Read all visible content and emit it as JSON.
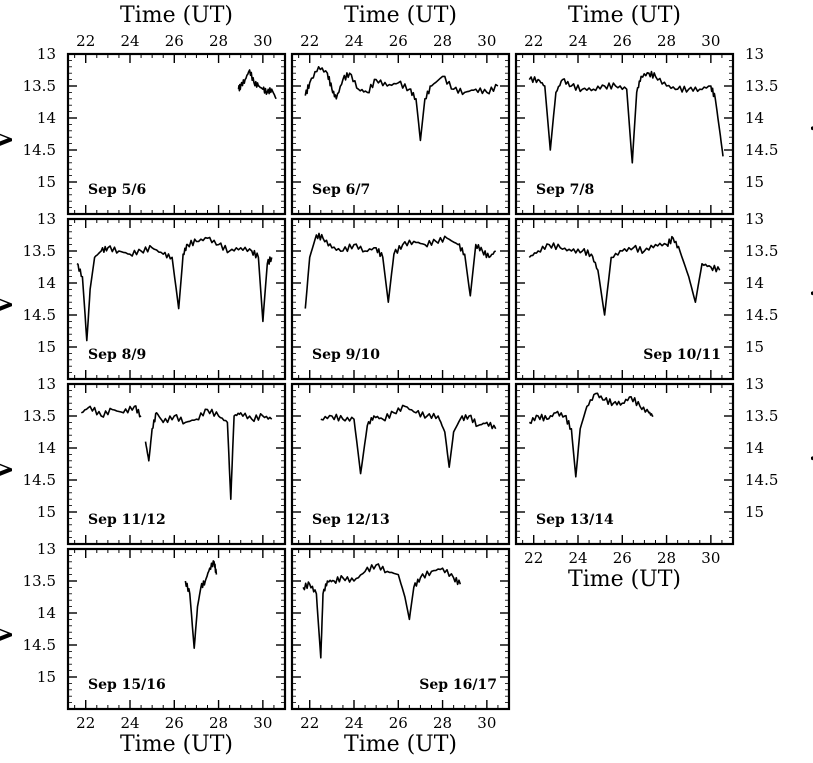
{
  "figure": {
    "xlabel": "Time (UT)",
    "ylabel": "V"
  },
  "chart_data": [
    {
      "type": "line",
      "label": "Sep 5/6",
      "xlabel": "Time (UT)",
      "ylabel": "V",
      "xlim": [
        21.2,
        31
      ],
      "ylim": [
        15.5,
        13
      ],
      "invert_y": true,
      "xticks": [
        22,
        24,
        26,
        28,
        30
      ],
      "yticks": [
        13,
        13.5,
        14,
        14.5,
        15
      ],
      "series": [
        {
          "x": [
            28.9,
            29.0,
            29.2,
            29.4,
            29.6,
            29.8,
            30.0,
            30.2,
            30.4,
            30.6
          ],
          "y": [
            13.55,
            13.5,
            13.4,
            13.25,
            13.45,
            13.5,
            13.55,
            13.6,
            13.55,
            13.7
          ]
        }
      ]
    },
    {
      "type": "line",
      "label": "Sep 6/7",
      "xlabel": "Time (UT)",
      "ylabel": "V",
      "xlim": [
        21.2,
        31
      ],
      "ylim": [
        15.5,
        13
      ],
      "invert_y": true,
      "xticks": [
        22,
        24,
        26,
        28,
        30
      ],
      "yticks": [
        13,
        13.5,
        14,
        14.5,
        15
      ],
      "series": [
        {
          "x": [
            21.8,
            22.0,
            22.4,
            22.8,
            23.0,
            23.2,
            23.5,
            23.8,
            24.2,
            24.6,
            25.0,
            25.5,
            26.0,
            26.5,
            26.8,
            27.0,
            27.2,
            27.5,
            28.0,
            28.5,
            29.0,
            29.5,
            30.0,
            30.5
          ],
          "y": [
            13.65,
            13.45,
            13.2,
            13.3,
            13.55,
            13.7,
            13.4,
            13.3,
            13.55,
            13.6,
            13.4,
            13.5,
            13.45,
            13.55,
            13.7,
            14.35,
            13.7,
            13.5,
            13.35,
            13.55,
            13.6,
            13.55,
            13.6,
            13.5
          ]
        }
      ]
    },
    {
      "type": "line",
      "label": "Sep 7/8",
      "xlabel": "Time (UT)",
      "ylabel": "V",
      "xlim": [
        21.2,
        31
      ],
      "ylim": [
        15.5,
        13
      ],
      "invert_y": true,
      "xticks": [
        22,
        24,
        26,
        28,
        30
      ],
      "yticks": [
        13,
        13.5,
        14,
        14.5,
        15
      ],
      "series": [
        {
          "x": [
            21.8,
            22.2,
            22.5,
            22.75,
            23.0,
            23.3,
            23.7,
            24.2,
            24.7,
            25.2,
            25.7,
            26.2,
            26.45,
            26.65,
            26.85,
            27.2,
            27.5,
            28.0,
            28.5,
            29.0,
            29.5,
            30.0,
            30.2,
            30.4,
            30.55
          ],
          "y": [
            13.4,
            13.4,
            13.5,
            14.5,
            13.6,
            13.4,
            13.5,
            13.55,
            13.55,
            13.5,
            13.5,
            13.55,
            14.7,
            13.6,
            13.35,
            13.3,
            13.35,
            13.5,
            13.55,
            13.55,
            13.55,
            13.5,
            13.7,
            14.2,
            14.6
          ]
        }
      ]
    },
    {
      "type": "line",
      "label": "Sep 8/9",
      "xlabel": "Time (UT)",
      "ylabel": "V",
      "xlim": [
        21.2,
        31
      ],
      "ylim": [
        15.5,
        13
      ],
      "invert_y": true,
      "xticks": [
        22,
        24,
        26,
        28,
        30
      ],
      "yticks": [
        13,
        13.5,
        14,
        14.5,
        15
      ],
      "series": [
        {
          "x": [
            21.6,
            21.85,
            22.05,
            22.2,
            22.4,
            22.7,
            23.0,
            23.5,
            24.0,
            24.5,
            25.0,
            25.5,
            25.9,
            26.2,
            26.4,
            26.6,
            27.0,
            27.5,
            28.0,
            28.5,
            29.0,
            29.5,
            29.8,
            30.0,
            30.2,
            30.4
          ],
          "y": [
            13.7,
            13.9,
            14.9,
            14.1,
            13.6,
            13.5,
            13.45,
            13.5,
            13.55,
            13.5,
            13.45,
            13.55,
            13.6,
            14.4,
            13.55,
            13.4,
            13.35,
            13.3,
            13.4,
            13.5,
            13.45,
            13.5,
            13.6,
            14.6,
            13.7,
            13.6
          ]
        }
      ]
    },
    {
      "type": "line",
      "label": "Sep 9/10",
      "xlabel": "Time (UT)",
      "ylabel": "V",
      "xlim": [
        21.2,
        31
      ],
      "ylim": [
        15.5,
        13
      ],
      "invert_y": true,
      "xticks": [
        22,
        24,
        26,
        28,
        30
      ],
      "yticks": [
        13,
        13.5,
        14,
        14.5,
        15
      ],
      "series": [
        {
          "x": [
            21.8,
            22.0,
            22.3,
            22.6,
            23.0,
            23.5,
            24.0,
            24.5,
            25.0,
            25.3,
            25.55,
            25.8,
            26.2,
            26.7,
            27.2,
            27.7,
            28.2,
            28.7,
            29.0,
            29.25,
            29.5,
            29.8,
            30.1,
            30.4
          ],
          "y": [
            14.4,
            13.6,
            13.25,
            13.3,
            13.45,
            13.5,
            13.4,
            13.5,
            13.45,
            13.6,
            14.3,
            13.55,
            13.4,
            13.35,
            13.4,
            13.35,
            13.3,
            13.4,
            13.55,
            14.2,
            13.4,
            13.5,
            13.6,
            13.5
          ]
        }
      ]
    },
    {
      "type": "line",
      "label": "Sep 10/11",
      "xlabel": "Time (UT)",
      "ylabel": "V",
      "xlim": [
        21.2,
        31
      ],
      "ylim": [
        15.5,
        13
      ],
      "invert_y": true,
      "xticks": [
        22,
        24,
        26,
        28,
        30
      ],
      "yticks": [
        13,
        13.5,
        14,
        14.5,
        15
      ],
      "series": [
        {
          "x": [
            21.8,
            22.2,
            22.7,
            23.2,
            23.7,
            24.2,
            24.6,
            24.9,
            25.2,
            25.5,
            26.0,
            26.5,
            27.0,
            27.5,
            28.0,
            28.3,
            28.6,
            29.0,
            29.3,
            29.6,
            30.0,
            30.4
          ],
          "y": [
            13.6,
            13.5,
            13.4,
            13.45,
            13.5,
            13.5,
            13.55,
            13.8,
            14.5,
            13.6,
            13.5,
            13.45,
            13.5,
            13.4,
            13.4,
            13.3,
            13.5,
            13.9,
            14.3,
            13.7,
            13.75,
            13.8
          ]
        }
      ]
    },
    {
      "type": "line",
      "label": "Sep 11/12",
      "xlabel": "Time (UT)",
      "ylabel": "V",
      "xlim": [
        21.2,
        31
      ],
      "ylim": [
        15.5,
        13
      ],
      "invert_y": true,
      "xticks": [
        22,
        24,
        26,
        28,
        30
      ],
      "yticks": [
        13,
        13.5,
        14,
        14.5,
        15
      ],
      "series": [
        {
          "x": [
            21.8,
            22.2,
            22.7,
            23.2,
            23.7,
            24.2,
            24.5
          ],
          "y": [
            13.45,
            13.35,
            13.5,
            13.4,
            13.45,
            13.35,
            13.5
          ]
        },
        {
          "x": [
            24.7,
            24.85,
            25.0,
            25.2,
            25.5,
            26.0,
            26.5,
            27.0,
            27.5,
            28.0,
            28.4,
            28.55,
            28.7,
            29.0,
            29.5,
            30.0,
            30.4
          ],
          "y": [
            13.9,
            14.2,
            13.7,
            13.45,
            13.6,
            13.5,
            13.6,
            13.55,
            13.4,
            13.5,
            13.6,
            14.8,
            13.5,
            13.45,
            13.55,
            13.5,
            13.55
          ]
        }
      ]
    },
    {
      "type": "line",
      "label": "Sep 12/13",
      "xlabel": "Time (UT)",
      "ylabel": "V",
      "xlim": [
        21.2,
        31
      ],
      "ylim": [
        15.5,
        13
      ],
      "invert_y": true,
      "xticks": [
        22,
        24,
        26,
        28,
        30
      ],
      "yticks": [
        13,
        13.5,
        14,
        14.5,
        15
      ],
      "series": [
        {
          "x": [
            22.5,
            23.0,
            23.5,
            24.0,
            24.3,
            24.6,
            24.9,
            25.3,
            25.8,
            26.3,
            26.8,
            27.3,
            27.8,
            28.1,
            28.3,
            28.5,
            28.8,
            29.2,
            29.6,
            30.0,
            30.4
          ],
          "y": [
            13.55,
            13.5,
            13.55,
            13.55,
            14.4,
            13.65,
            13.5,
            13.55,
            13.45,
            13.35,
            13.45,
            13.5,
            13.5,
            13.75,
            14.3,
            13.75,
            13.55,
            13.5,
            13.65,
            13.6,
            13.7
          ]
        }
      ]
    },
    {
      "type": "line",
      "label": "Sep 13/14",
      "xlabel": "Time (UT)",
      "ylabel": "V",
      "xlim": [
        21.2,
        31
      ],
      "ylim": [
        15.5,
        13
      ],
      "invert_y": true,
      "xticks": [
        22,
        24,
        26,
        28,
        30
      ],
      "yticks": [
        13,
        13.5,
        14,
        14.5,
        15
      ],
      "series": [
        {
          "x": [
            21.8,
            22.2,
            22.6,
            23.0,
            23.4,
            23.7,
            23.9,
            24.1,
            24.4,
            24.8,
            25.2,
            25.6,
            26.0,
            26.4,
            26.8,
            27.2,
            27.4
          ],
          "y": [
            13.6,
            13.5,
            13.55,
            13.45,
            13.5,
            13.7,
            14.45,
            13.7,
            13.35,
            13.15,
            13.25,
            13.3,
            13.3,
            13.2,
            13.35,
            13.45,
            13.5
          ]
        }
      ]
    },
    {
      "type": "line",
      "label": "Sep 15/16",
      "xlabel": "Time (UT)",
      "ylabel": "V",
      "xlim": [
        21.2,
        31
      ],
      "ylim": [
        15.5,
        13
      ],
      "invert_y": true,
      "xticks": [
        22,
        24,
        26,
        28,
        30
      ],
      "yticks": [
        13,
        13.5,
        14,
        14.5,
        15
      ],
      "series": [
        {
          "x": [
            26.5,
            26.7,
            26.9,
            27.05,
            27.2,
            27.4,
            27.6,
            27.8,
            27.9
          ],
          "y": [
            13.5,
            13.7,
            14.55,
            13.9,
            13.6,
            13.5,
            13.3,
            13.2,
            13.4
          ]
        }
      ]
    },
    {
      "type": "line",
      "label": "Sep 16/17",
      "xlabel": "Time (UT)",
      "ylabel": "V",
      "xlim": [
        21.2,
        31
      ],
      "ylim": [
        15.5,
        13
      ],
      "invert_y": true,
      "xticks": [
        22,
        24,
        26,
        28,
        30
      ],
      "yticks": [
        13,
        13.5,
        14,
        14.5,
        15
      ],
      "series": [
        {
          "x": [
            21.7,
            22.0,
            22.3,
            22.5,
            22.6,
            22.8,
            23.1,
            23.5,
            24.0,
            24.5,
            25.0,
            25.5,
            26.0,
            26.3,
            26.5,
            26.7,
            27.0,
            27.5,
            28.0,
            28.5,
            28.8
          ],
          "y": [
            13.6,
            13.55,
            13.7,
            14.7,
            13.7,
            13.5,
            13.5,
            13.45,
            13.5,
            13.35,
            13.25,
            13.35,
            13.4,
            13.75,
            14.1,
            13.6,
            13.45,
            13.35,
            13.3,
            13.45,
            13.55
          ]
        }
      ]
    }
  ]
}
